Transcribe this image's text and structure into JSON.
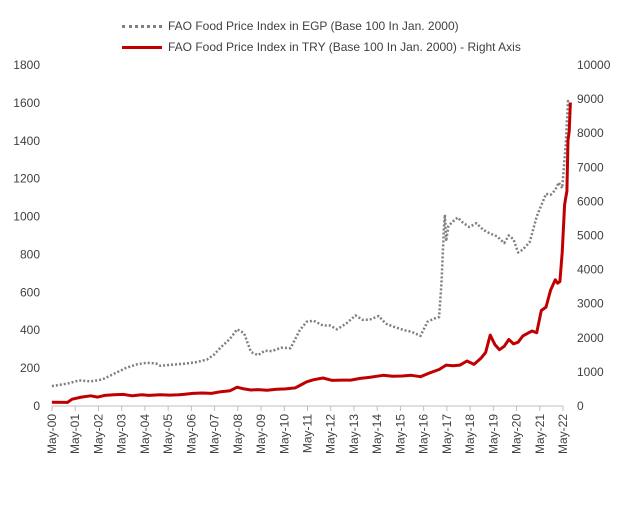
{
  "chart_data": {
    "type": "line",
    "legend_placement": "top",
    "grid": false,
    "x_tick_labels": [
      "May-00",
      "May-01",
      "May-02",
      "May-03",
      "May-04",
      "May-05",
      "May-06",
      "May-07",
      "May-08",
      "May-09",
      "May-10",
      "May-11",
      "May-12",
      "May-13",
      "May-14",
      "May-15",
      "May-16",
      "May-17",
      "May-18",
      "May-19",
      "May-20",
      "May-21",
      "May-22"
    ],
    "y_left": {
      "ylim": [
        0,
        1800
      ],
      "ticks": [
        "0",
        "200",
        "400",
        "600",
        "800",
        "1000",
        "1200",
        "1400",
        "1600",
        "1800"
      ]
    },
    "y_right": {
      "ylim": [
        0,
        10000
      ],
      "ticks": [
        "0",
        "1000",
        "2000",
        "3000",
        "4000",
        "5000",
        "6000",
        "7000",
        "8000",
        "9000",
        "10000"
      ]
    },
    "series": [
      {
        "name": "FAO Food Price Index in EGP (Base 100 In Jan. 2000)",
        "axis": "left",
        "style": "dotted",
        "color": "#7f7f7f",
        "points": [
          [
            2000.33,
            105
          ],
          [
            2001.0,
            118
          ],
          [
            2001.5,
            135
          ],
          [
            2002.0,
            130
          ],
          [
            2002.5,
            140
          ],
          [
            2003.0,
            170
          ],
          [
            2003.5,
            200
          ],
          [
            2004.0,
            220
          ],
          [
            2004.4,
            228
          ],
          [
            2004.8,
            225
          ],
          [
            2005.0,
            212
          ],
          [
            2005.5,
            218
          ],
          [
            2006.0,
            223
          ],
          [
            2006.5,
            230
          ],
          [
            2007.0,
            245
          ],
          [
            2007.3,
            270
          ],
          [
            2007.6,
            310
          ],
          [
            2008.0,
            355
          ],
          [
            2008.3,
            405
          ],
          [
            2008.6,
            385
          ],
          [
            2008.9,
            285
          ],
          [
            2009.2,
            268
          ],
          [
            2009.5,
            292
          ],
          [
            2009.8,
            290
          ],
          [
            2010.2,
            308
          ],
          [
            2010.6,
            305
          ],
          [
            2011.0,
            400
          ],
          [
            2011.3,
            445
          ],
          [
            2011.6,
            450
          ],
          [
            2012.0,
            425
          ],
          [
            2012.3,
            425
          ],
          [
            2012.6,
            405
          ],
          [
            2013.0,
            435
          ],
          [
            2013.4,
            478
          ],
          [
            2013.7,
            455
          ],
          [
            2014.0,
            455
          ],
          [
            2014.4,
            475
          ],
          [
            2014.7,
            435
          ],
          [
            2015.0,
            420
          ],
          [
            2015.5,
            400
          ],
          [
            2015.8,
            392
          ],
          [
            2016.2,
            370
          ],
          [
            2016.5,
            445
          ],
          [
            2016.8,
            462
          ],
          [
            2017.0,
            470
          ],
          [
            2017.1,
            650
          ],
          [
            2017.2,
            930
          ],
          [
            2017.25,
            1010
          ],
          [
            2017.3,
            870
          ],
          [
            2017.4,
            950
          ],
          [
            2017.6,
            975
          ],
          [
            2017.8,
            995
          ],
          [
            2018.0,
            970
          ],
          [
            2018.3,
            945
          ],
          [
            2018.6,
            965
          ],
          [
            2018.9,
            930
          ],
          [
            2019.2,
            910
          ],
          [
            2019.5,
            895
          ],
          [
            2019.8,
            860
          ],
          [
            2020.0,
            900
          ],
          [
            2020.2,
            880
          ],
          [
            2020.4,
            810
          ],
          [
            2020.6,
            825
          ],
          [
            2020.9,
            865
          ],
          [
            2021.2,
            1000
          ],
          [
            2021.4,
            1060
          ],
          [
            2021.6,
            1120
          ],
          [
            2021.8,
            1115
          ],
          [
            2022.0,
            1140
          ],
          [
            2022.15,
            1180
          ],
          [
            2022.3,
            1150
          ],
          [
            2022.45,
            1380
          ],
          [
            2022.55,
            1610
          ],
          [
            2022.6,
            1590
          ]
        ]
      },
      {
        "name": "FAO Food Price Index in TRY (Base 100 In Jan. 2000) - Right Axis",
        "axis": "right",
        "style": "solid",
        "color": "#c00000",
        "points": [
          [
            2000.33,
            110
          ],
          [
            2001.0,
            105
          ],
          [
            2001.2,
            200
          ],
          [
            2001.6,
            260
          ],
          [
            2002.0,
            300
          ],
          [
            2002.3,
            260
          ],
          [
            2002.6,
            310
          ],
          [
            2003.0,
            330
          ],
          [
            2003.4,
            340
          ],
          [
            2003.8,
            300
          ],
          [
            2004.2,
            330
          ],
          [
            2004.5,
            310
          ],
          [
            2005.0,
            330
          ],
          [
            2005.4,
            320
          ],
          [
            2005.8,
            330
          ],
          [
            2006.0,
            340
          ],
          [
            2006.4,
            370
          ],
          [
            2006.8,
            380
          ],
          [
            2007.2,
            370
          ],
          [
            2007.6,
            420
          ],
          [
            2008.0,
            450
          ],
          [
            2008.3,
            550
          ],
          [
            2008.6,
            500
          ],
          [
            2008.9,
            470
          ],
          [
            2009.2,
            480
          ],
          [
            2009.6,
            460
          ],
          [
            2010.0,
            490
          ],
          [
            2010.4,
            500
          ],
          [
            2010.8,
            530
          ],
          [
            2011.0,
            600
          ],
          [
            2011.3,
            710
          ],
          [
            2011.6,
            770
          ],
          [
            2012.0,
            820
          ],
          [
            2012.4,
            750
          ],
          [
            2012.8,
            760
          ],
          [
            2013.2,
            760
          ],
          [
            2013.6,
            810
          ],
          [
            2014.0,
            840
          ],
          [
            2014.3,
            870
          ],
          [
            2014.6,
            900
          ],
          [
            2015.0,
            870
          ],
          [
            2015.4,
            880
          ],
          [
            2015.8,
            900
          ],
          [
            2016.2,
            860
          ],
          [
            2016.6,
            970
          ],
          [
            2017.0,
            1070
          ],
          [
            2017.3,
            1200
          ],
          [
            2017.6,
            1180
          ],
          [
            2017.9,
            1200
          ],
          [
            2018.2,
            1320
          ],
          [
            2018.5,
            1220
          ],
          [
            2018.8,
            1400
          ],
          [
            2019.0,
            1570
          ],
          [
            2019.2,
            2080
          ],
          [
            2019.4,
            1800
          ],
          [
            2019.6,
            1650
          ],
          [
            2019.8,
            1750
          ],
          [
            2020.0,
            1950
          ],
          [
            2020.2,
            1820
          ],
          [
            2020.4,
            1870
          ],
          [
            2020.6,
            2050
          ],
          [
            2020.8,
            2130
          ],
          [
            2021.0,
            2200
          ],
          [
            2021.2,
            2150
          ],
          [
            2021.4,
            2800
          ],
          [
            2021.6,
            2900
          ],
          [
            2021.8,
            3400
          ],
          [
            2022.0,
            3700
          ],
          [
            2022.1,
            3600
          ],
          [
            2022.2,
            3650
          ],
          [
            2022.3,
            4500
          ],
          [
            2022.4,
            5900
          ],
          [
            2022.45,
            6100
          ],
          [
            2022.5,
            6300
          ],
          [
            2022.55,
            7800
          ],
          [
            2022.6,
            8050
          ],
          [
            2022.65,
            8900
          ]
        ]
      }
    ]
  }
}
